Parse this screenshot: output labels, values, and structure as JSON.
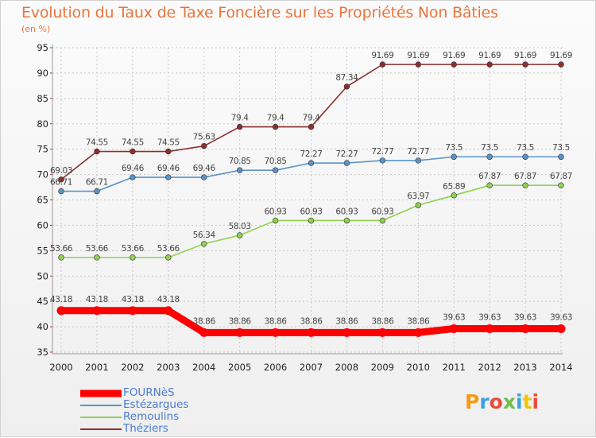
{
  "chart_data": {
    "type": "line",
    "title": "Evolution du Taux de Taxe Foncière sur les Propriétés Non Bâties",
    "subtitle": "(en %)",
    "x": [
      "2000",
      "2001",
      "2002",
      "2003",
      "2004",
      "2005",
      "2006",
      "2007",
      "2008",
      "2009",
      "2010",
      "2011",
      "2012",
      "2013",
      "2014"
    ],
    "ylim": [
      35,
      95
    ],
    "yticks": [
      "35",
      "40",
      "45",
      "50",
      "55",
      "60",
      "65",
      "70",
      "75",
      "80",
      "85",
      "90",
      "95"
    ],
    "grid": true,
    "legend_position": "bottom-left",
    "series": [
      {
        "name": "FOURNèS",
        "color": "#ff0000",
        "values": [
          43.18,
          43.18,
          43.18,
          43.18,
          38.86,
          38.86,
          38.86,
          38.86,
          38.86,
          38.86,
          38.86,
          39.63,
          39.63,
          39.63,
          39.63
        ],
        "labels": [
          "43.18",
          "43.18",
          "43.18",
          "43.18",
          "38.86",
          "38.86",
          "38.86",
          "38.86",
          "38.86",
          "38.86",
          "38.86",
          "39.63",
          "39.63",
          "39.63",
          "39.63"
        ]
      },
      {
        "name": "Estézargues",
        "color": "#5b93c7",
        "values": [
          66.71,
          66.71,
          69.46,
          69.46,
          69.46,
          70.85,
          70.85,
          72.27,
          72.27,
          72.77,
          72.77,
          73.5,
          73.5,
          73.5,
          73.5
        ],
        "labels": [
          "66.71",
          "66.71",
          "69.46",
          "69.46",
          "69.46",
          "70.85",
          "70.85",
          "72.27",
          "72.27",
          "72.77",
          "72.77",
          "73.5",
          "73.5",
          "73.5",
          "73.5"
        ]
      },
      {
        "name": "Remoulins",
        "color": "#8fd14f",
        "values": [
          53.66,
          53.66,
          53.66,
          53.66,
          56.34,
          58.03,
          60.93,
          60.93,
          60.93,
          60.93,
          63.97,
          65.89,
          67.87,
          67.87,
          67.87
        ],
        "labels": [
          "53.66",
          "53.66",
          "53.66",
          "53.66",
          "56.34",
          "58.03",
          "60.93",
          "60.93",
          "60.93",
          "60.93",
          "63.97",
          "65.89",
          "67.87",
          "67.87",
          "67.87"
        ]
      },
      {
        "name": "Théziers",
        "color": "#8b2f2f",
        "values": [
          69.03,
          74.55,
          74.55,
          74.55,
          75.63,
          79.4,
          79.4,
          79.4,
          87.34,
          91.69,
          91.69,
          91.69,
          91.69,
          91.69,
          91.69
        ],
        "labels": [
          "69.03",
          "74.55",
          "74.55",
          "74.55",
          "75.63",
          "79.4",
          "79.4",
          "79.4",
          "87.34",
          "91.69",
          "91.69",
          "91.69",
          "91.69",
          "91.69",
          "91.69"
        ]
      }
    ]
  },
  "branding": {
    "logo_text": "Proxiti",
    "logo_colors": [
      "#f39c12",
      "#3aa0e0",
      "#e74c3c",
      "#6cc04a",
      "#3aa0e0",
      "#f1c40f",
      "#e74c3c"
    ]
  }
}
